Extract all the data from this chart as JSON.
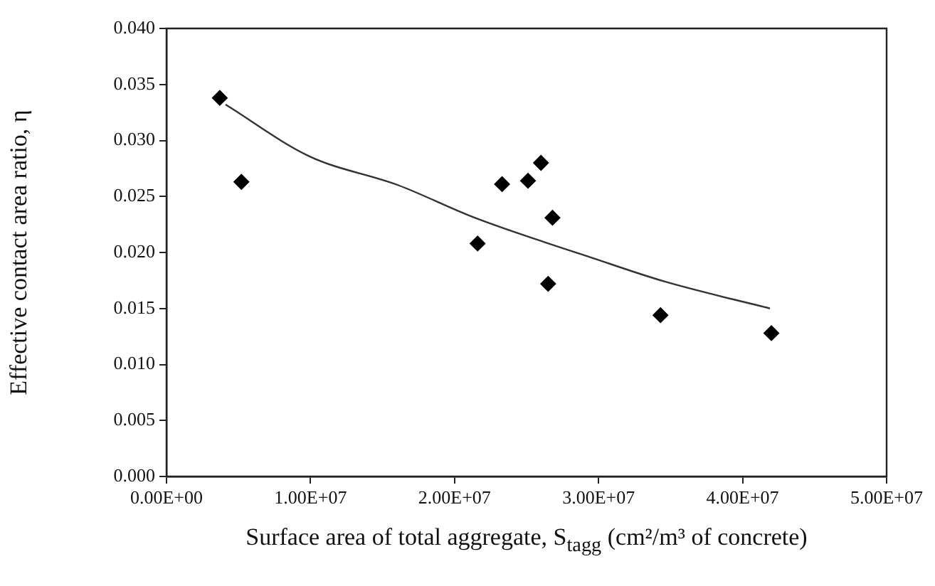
{
  "chart_data": {
    "type": "scatter",
    "xlabel": "Surface area of total aggregate, S$_{tagg}$ (cm²/m³ of concrete)",
    "ylabel": "Effective contact area ratio, η",
    "xlim": [
      0,
      50000000
    ],
    "ylim": [
      0,
      0.04
    ],
    "xticks": [
      {
        "value": 0,
        "label": "0.00E+00"
      },
      {
        "value": 10000000,
        "label": "1.00E+07"
      },
      {
        "value": 20000000,
        "label": "2.00E+07"
      },
      {
        "value": 30000000,
        "label": "3.00E+07"
      },
      {
        "value": 40000000,
        "label": "4.00E+07"
      },
      {
        "value": 50000000,
        "label": "5.00E+07"
      }
    ],
    "yticks": [
      {
        "value": 0,
        "label": "0.000"
      },
      {
        "value": 0.005,
        "label": "0.005"
      },
      {
        "value": 0.01,
        "label": "0.010"
      },
      {
        "value": 0.015,
        "label": "0.015"
      },
      {
        "value": 0.02,
        "label": "0.020"
      },
      {
        "value": 0.025,
        "label": "0.025"
      },
      {
        "value": 0.03,
        "label": "0.030"
      },
      {
        "value": 0.035,
        "label": "0.035"
      },
      {
        "value": 0.04,
        "label": "0.040"
      }
    ],
    "grid": false,
    "legend": false,
    "marker": "diamond",
    "series": [
      {
        "color": "#000000",
        "x": [
          3700000,
          5200000,
          21600000,
          23300000,
          25100000,
          26000000,
          26800000,
          26500000,
          34300000,
          42000000
        ],
        "values": [
          0.0338,
          0.0263,
          0.0208,
          0.0261,
          0.0264,
          0.028,
          0.0231,
          0.0172,
          0.0144,
          0.0128
        ]
      },
      {
        "type": "line",
        "color": "#333333",
        "marker": "none",
        "line_style": "solid",
        "x": [
          4100000,
          9900000,
          16100000,
          21400000,
          29600000,
          34600000,
          41900000
        ],
        "values": [
          0.0332,
          0.0286,
          0.026,
          0.0231,
          0.0195,
          0.0174,
          0.015
        ]
      }
    ]
  }
}
